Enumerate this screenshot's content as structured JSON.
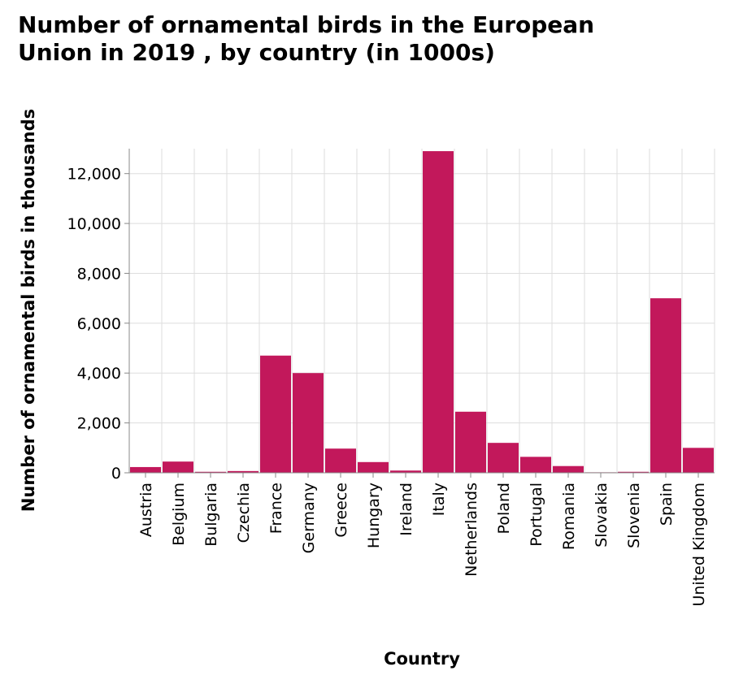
{
  "chart_data": {
    "type": "bar",
    "title_lines": [
      "Number of ornamental birds in the European",
      "Union in 2019 , by country (in 1000s)"
    ],
    "xlabel": "Country",
    "ylabel": "Number of ornamental birds in thousands",
    "categories": [
      "Austria",
      "Belgium",
      "Bulgaria",
      "Czechia",
      "France",
      "Germany",
      "Greece",
      "Hungary",
      "Ireland",
      "Italy",
      "Netherlands",
      "Poland",
      "Portugal",
      "Romania",
      "Slovakia",
      "Slovenia",
      "Spain",
      "United Kingdom"
    ],
    "values": [
      230,
      450,
      40,
      70,
      4700,
      4000,
      970,
      430,
      90,
      12900,
      2450,
      1200,
      640,
      270,
      20,
      40,
      7000,
      1000
    ],
    "ylim": [
      0,
      13000
    ],
    "yticks": [
      0,
      2000,
      4000,
      6000,
      8000,
      10000,
      12000
    ],
    "ytick_labels": [
      "0",
      "2,000",
      "4,000",
      "6,000",
      "8,000",
      "10,000",
      "12,000"
    ],
    "grid": true,
    "bar_color": "#c2185b"
  }
}
